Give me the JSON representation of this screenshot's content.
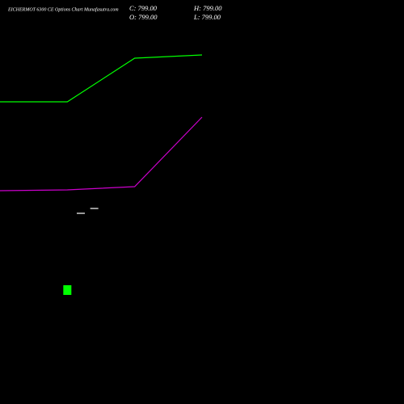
{
  "chart_data": {
    "type": "line",
    "title": "EICHERMOT 6300  CE Options  Chart Munafasutra.com",
    "ohlc": [
      "C: 799.00",
      "H: 799.00",
      "O: 799.00",
      "L: 799.00"
    ],
    "xlim": [
      0,
      30
    ],
    "ylim": [
      0,
      100
    ],
    "series": [
      {
        "color": "#00ff00",
        "x": [
          0,
          5,
          10,
          15
        ],
        "values": [
          74.8,
          74.8,
          85.6,
          86.4
        ]
      },
      {
        "color": "#cc00cc",
        "x": [
          0,
          5,
          10,
          15
        ],
        "values": [
          52.8,
          53,
          53.8,
          71
        ]
      }
    ],
    "candles": {
      "color": "#ffffff",
      "x": [
        6,
        7
      ],
      "values": [
        47.2,
        48.4
      ]
    },
    "volume": {
      "color": "#00ff00",
      "x": [
        5
      ],
      "values": [
        2.4
      ]
    }
  }
}
